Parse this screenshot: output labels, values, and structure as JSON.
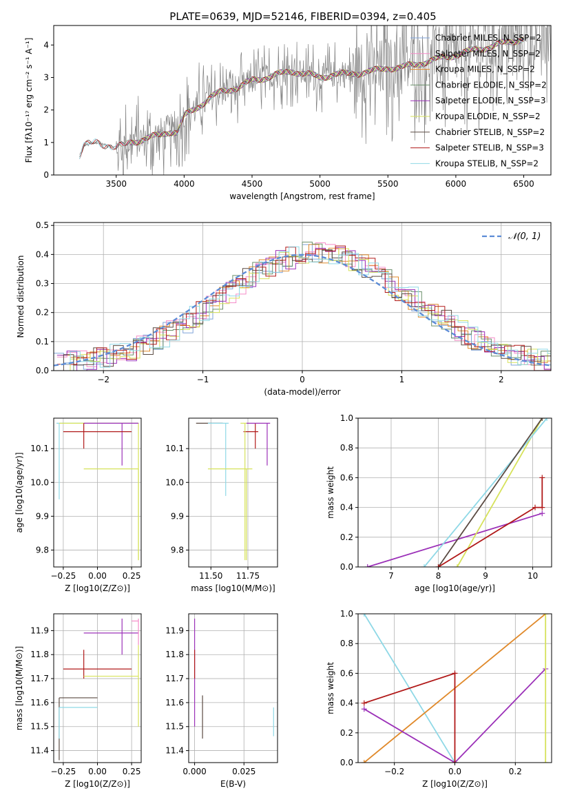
{
  "figure_title": "PLATE=0639, MJD=52146, FIBERID=0394, z=0.405",
  "colors": {
    "chabrier_miles": "#7fa3d9",
    "salpeter_miles": "#f58bc8",
    "kroupa_miles": "#e0892a",
    "chabrier_elodie": "#6a8f6a",
    "salpeter_elodie": "#9b30b8",
    "kroupa_elodie": "#d6e25a",
    "chabrier_stelib": "#5a4a42",
    "salpeter_stelib": "#b01818",
    "kroupa_stelib": "#8ed8e6",
    "data": "#808080",
    "normal": "#5b8bd6"
  },
  "chart_data": [
    {
      "id": "spectrum",
      "type": "line",
      "xlabel": "wavelength [Angstrom, rest frame]",
      "ylabel": "Flux [fλ10⁻¹⁷ erg cm⁻² s⁻¹ A⁻¹]",
      "xlim": [
        3040,
        6700
      ],
      "ylim": [
        0,
        4.6
      ],
      "xticks": [
        3500,
        4000,
        4500,
        5000,
        5500,
        6000,
        6500
      ],
      "yticks": [
        0,
        1,
        2,
        3,
        4
      ],
      "continuum": {
        "x": [
          3230,
          3260,
          3300,
          3350,
          3400,
          3450,
          3500,
          3550,
          3600,
          3700,
          3800,
          3900,
          3950,
          4000,
          4100,
          4200,
          4300,
          4400,
          4500,
          4600,
          4700,
          4800,
          4900,
          5000,
          5100,
          5200,
          5300,
          5400,
          5500,
          5600,
          5700,
          5800,
          5900,
          6000,
          6100,
          6200,
          6300,
          6400,
          6500,
          6600
        ],
        "y": [
          0.6,
          0.9,
          0.95,
          1.0,
          0.95,
          0.9,
          0.85,
          0.9,
          1.0,
          1.1,
          1.2,
          1.35,
          1.3,
          1.8,
          2.1,
          2.4,
          2.6,
          2.7,
          2.9,
          3.0,
          3.1,
          3.2,
          3.1,
          3.0,
          3.1,
          3.1,
          3.15,
          3.2,
          3.3,
          3.3,
          3.4,
          3.5,
          3.6,
          3.7,
          3.8,
          3.9,
          4.0,
          4.1,
          4.2,
          4.2
        ]
      },
      "legend": [
        "Chabrier MILES, N_SSP=2",
        "Salpeter MILES, N_SSP=2",
        "Kroupa MILES, N_SSP=2",
        "Chabrier ELODIE, N_SSP=2",
        "Salpeter ELODIE, N_SSP=3",
        "Kroupa ELODIE, N_SSP=2",
        "Chabrier STELIB, N_SSP=2",
        "Salpeter STELIB, N_SSP=3",
        "Kroupa STELIB, N_SSP=2"
      ]
    },
    {
      "id": "residuals",
      "type": "line",
      "xlabel": "(data-model)/error",
      "ylabel": "Normed distribution",
      "xlim": [
        -2.5,
        2.5
      ],
      "ylim": [
        0,
        0.51
      ],
      "xticks": [
        -2,
        -1,
        0,
        1,
        2
      ],
      "yticks": [
        0.0,
        0.1,
        0.2,
        0.3,
        0.4,
        0.5
      ],
      "legend_label": "𝒩(0, 1)",
      "normal_curve": {
        "mean": 0,
        "sigma": 1
      }
    },
    {
      "id": "age_vs_Z",
      "type": "scatter",
      "xlabel": "Z [log10(Z/Z⊙)]",
      "ylabel": "age  [log10(age/yr)]",
      "xlim": [
        -0.32,
        0.32
      ],
      "ylim": [
        9.75,
        10.19
      ],
      "xticks": [
        -0.25,
        0.0,
        0.25
      ],
      "yticks": [
        9.8,
        9.9,
        10.0,
        10.1
      ]
    },
    {
      "id": "age_vs_mass",
      "type": "scatter",
      "xlabel": "mass [log10(M/M⊙)]",
      "ylabel": "",
      "xlim": [
        11.35,
        11.95
      ],
      "ylim": [
        9.75,
        10.19
      ],
      "xticks": [
        11.5,
        11.75
      ],
      "yticks": [
        9.8,
        9.9,
        10.0,
        10.1
      ]
    },
    {
      "id": "massweight_vs_age",
      "type": "line",
      "xlabel": "age  [log10(age/yr)]",
      "ylabel": "mass weight",
      "xlim": [
        6.3,
        10.4
      ],
      "ylim": [
        0.0,
        1.0
      ],
      "xticks": [
        7,
        8,
        9,
        10
      ],
      "yticks": [
        0.0,
        0.2,
        0.4,
        0.6,
        0.8,
        1.0
      ],
      "series": [
        {
          "key": "salpeter_elodie",
          "x": [
            6.5,
            10.2
          ],
          "y": [
            0.0,
            0.36
          ]
        },
        {
          "key": "kroupa_elodie",
          "x": [
            8.4,
            10.2
          ],
          "y": [
            0.0,
            1.0
          ]
        },
        {
          "key": "kroupa_stelib",
          "x": [
            7.7,
            10.3
          ],
          "y": [
            0.0,
            1.0
          ]
        },
        {
          "key": "chabrier_stelib",
          "x": [
            8.0,
            10.2
          ],
          "y": [
            0.0,
            1.0
          ]
        },
        {
          "key": "salpeter_stelib",
          "x": [
            8.0,
            10.05,
            10.2,
            10.2
          ],
          "y": [
            0.0,
            0.4,
            0.4,
            0.6
          ]
        }
      ]
    },
    {
      "id": "mass_vs_Z",
      "type": "scatter",
      "xlabel": "Z [log10(Z/Z⊙)]",
      "ylabel": "mass [log10(M/M⊙)]",
      "xlim": [
        -0.32,
        0.32
      ],
      "ylim": [
        11.35,
        11.97
      ],
      "xticks": [
        -0.25,
        0.0,
        0.25
      ],
      "yticks": [
        11.4,
        11.5,
        11.6,
        11.7,
        11.8,
        11.9
      ]
    },
    {
      "id": "mass_vs_ebv",
      "type": "scatter",
      "xlabel": "E(B-V)",
      "ylabel": "",
      "xlim": [
        -0.003,
        0.042
      ],
      "ylim": [
        11.35,
        11.97
      ],
      "xticks": [
        0.0,
        0.025
      ],
      "yticks": [
        11.4,
        11.5,
        11.6,
        11.7,
        11.8,
        11.9
      ]
    },
    {
      "id": "massweight_vs_Z",
      "type": "line",
      "xlabel": "Z [log10(Z/Z⊙)]",
      "ylabel": "mass weight",
      "xlim": [
        -0.32,
        0.32
      ],
      "ylim": [
        0.0,
        1.0
      ],
      "xticks": [
        -0.2,
        0.0,
        0.2
      ],
      "yticks": [
        0.0,
        0.2,
        0.4,
        0.6,
        0.8,
        1.0
      ],
      "series": [
        {
          "key": "kroupa_stelib",
          "x": [
            -0.3,
            0.0
          ],
          "y": [
            1.0,
            0.0
          ]
        },
        {
          "key": "kroupa_miles",
          "x": [
            -0.3,
            0.3
          ],
          "y": [
            0.0,
            1.0
          ]
        },
        {
          "key": "salpeter_elodie",
          "x": [
            -0.3,
            0.0,
            0.3
          ],
          "y": [
            0.36,
            0.0,
            0.63
          ]
        },
        {
          "key": "salpeter_stelib",
          "x": [
            -0.3,
            0.0,
            0.0
          ],
          "y": [
            0.4,
            0.6,
            0.0
          ]
        },
        {
          "key": "kroupa_elodie",
          "x": [
            0.3,
            0.3
          ],
          "y": [
            0.0,
            1.0
          ]
        }
      ]
    }
  ]
}
